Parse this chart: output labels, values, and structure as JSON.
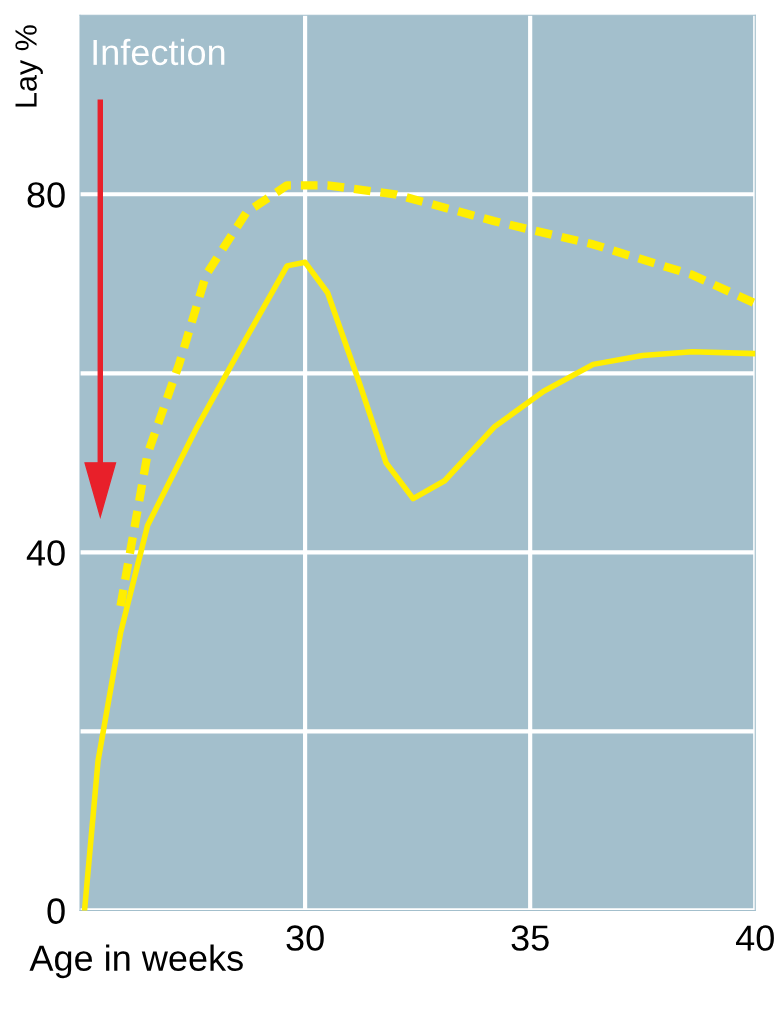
{
  "chart_data": {
    "type": "line",
    "xlabel": "Age in weeks",
    "ylabel": "Lay %",
    "xlim": [
      25,
      40
    ],
    "ylim": [
      0,
      100
    ],
    "xticks": [
      30,
      35,
      40
    ],
    "yticks": [
      0,
      {
        "value": 20,
        "label": null
      },
      40,
      {
        "value": 60,
        "label": null
      },
      80
    ],
    "grid": true,
    "series": [
      {
        "color": "#ffee00",
        "line_style": "solid",
        "x": [
          25.1,
          25.4,
          25.9,
          26.5,
          27.6,
          28.7,
          29.6,
          30,
          30.5,
          31.2,
          31.8,
          32.4,
          33.1,
          34.2,
          35.3,
          36.4,
          37.5,
          38.6,
          40
        ],
        "values": [
          0,
          16.7,
          31,
          43,
          54,
          64,
          72,
          72.4,
          69,
          59,
          50,
          46,
          48,
          54,
          58,
          61,
          62,
          62.4,
          62.2
        ]
      },
      {
        "color": "#ffee00",
        "line_style": "dashed",
        "x": [
          25.9,
          26.5,
          27.2,
          27.8,
          28.7,
          29.6,
          30.5,
          32,
          34.2,
          36.4,
          38.6,
          40
        ],
        "values": [
          34,
          51,
          61,
          71,
          78,
          81,
          81,
          80,
          77,
          74.4,
          71,
          67.8
        ]
      }
    ],
    "annotations": [
      "Infection"
    ]
  }
}
